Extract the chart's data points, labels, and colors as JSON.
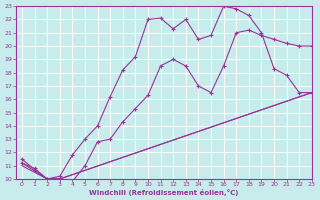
{
  "xlabel": "Windchill (Refroidissement éolien,°C)",
  "ylabel": "",
  "bg_color": "#c8ecec",
  "line_color": "#993399",
  "grid_color": "#ffffff",
  "xlim": [
    -0.5,
    23
  ],
  "ylim": [
    10,
    23
  ],
  "xticks": [
    0,
    1,
    2,
    3,
    4,
    5,
    6,
    7,
    8,
    9,
    10,
    11,
    12,
    13,
    14,
    15,
    16,
    17,
    18,
    19,
    20,
    21,
    22,
    23
  ],
  "yticks": [
    10,
    11,
    12,
    13,
    14,
    15,
    16,
    17,
    18,
    19,
    20,
    21,
    22,
    23
  ],
  "curve1_x": [
    0,
    1,
    2,
    3,
    4,
    5,
    6,
    7,
    8,
    9,
    10,
    11,
    12,
    13,
    14,
    15,
    16,
    17,
    18,
    19,
    20,
    21,
    22,
    23
  ],
  "curve1_y": [
    11.5,
    10.7,
    10.0,
    10.0,
    9.8,
    11.0,
    12.8,
    13.0,
    14.3,
    15.3,
    16.3,
    18.5,
    19.0,
    18.5,
    17.0,
    16.5,
    18.5,
    21.0,
    21.2,
    20.8,
    20.5,
    20.2,
    20.0,
    20.0
  ],
  "curve2_x": [
    0,
    1,
    2,
    3,
    4,
    5,
    6,
    7,
    8,
    9,
    10,
    11,
    12,
    13,
    14,
    15,
    16,
    17,
    18,
    19,
    20,
    21,
    22,
    23
  ],
  "curve2_y": [
    11.2,
    10.8,
    10.0,
    10.2,
    11.8,
    13.0,
    14.0,
    16.2,
    18.2,
    19.2,
    22.0,
    22.1,
    21.3,
    22.0,
    20.5,
    20.8,
    23.0,
    22.8,
    22.3,
    21.0,
    18.3,
    17.8,
    16.5,
    16.5
  ],
  "curve3_x": [
    0,
    2,
    3,
    23
  ],
  "curve3_y": [
    11.0,
    10.0,
    10.0,
    16.5
  ],
  "curve4_x": [
    0,
    2,
    3,
    23
  ],
  "curve4_y": [
    11.2,
    10.0,
    10.0,
    16.5
  ]
}
